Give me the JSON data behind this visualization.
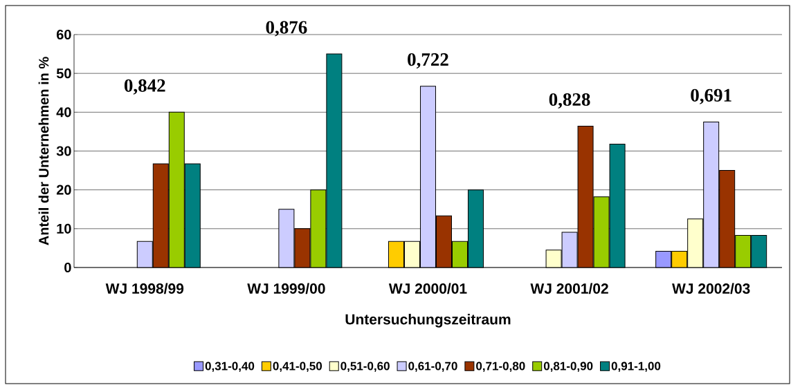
{
  "chart_data": {
    "type": "bar",
    "xlabel": "Untersuchungszeitraum",
    "ylabel": "Anteil der Unternehmen in %",
    "categories": [
      "WJ 1998/99",
      "WJ 1999/00",
      "WJ 2000/01",
      "WJ 2001/02",
      "WJ 2002/03"
    ],
    "series": [
      {
        "name": "0,31-0,40",
        "color": "#9999ff",
        "values": [
          null,
          null,
          null,
          null,
          4.2
        ]
      },
      {
        "name": "0,41-0,50",
        "color": "#ffcc00",
        "values": [
          null,
          null,
          6.7,
          null,
          4.2
        ]
      },
      {
        "name": "0,51-0,60",
        "color": "#ffffcc",
        "values": [
          null,
          null,
          6.7,
          4.5,
          12.5
        ]
      },
      {
        "name": "0,61-0,70",
        "color": "#ccccff",
        "values": [
          6.7,
          15,
          46.7,
          9.1,
          37.5
        ]
      },
      {
        "name": "0,71-0,80",
        "color": "#993300",
        "values": [
          26.7,
          10,
          13.3,
          36.4,
          25
        ]
      },
      {
        "name": "0,81-0,90",
        "color": "#99cc00",
        "values": [
          40,
          20,
          6.7,
          18.2,
          8.3
        ]
      },
      {
        "name": "0,91-1,00",
        "color": "#008080",
        "values": [
          26.7,
          55,
          20,
          31.8,
          8.3
        ]
      }
    ],
    "annotations": [
      "0,842",
      "0,876",
      "0,722",
      "0,828",
      "0,691"
    ],
    "ylim": [
      0,
      60
    ],
    "yticks": [
      0,
      10,
      20,
      30,
      40,
      50,
      60
    ],
    "grid": "y",
    "legend": "bottom"
  }
}
